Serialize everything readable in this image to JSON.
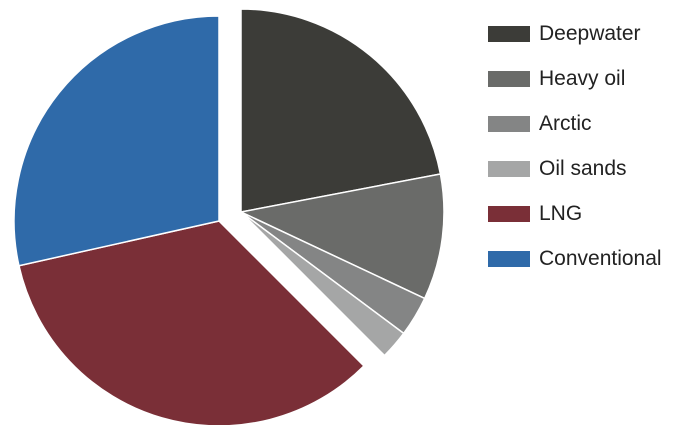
{
  "chart_data": {
    "type": "pie",
    "title": "",
    "slices": [
      {
        "label": "Deepwater",
        "value": 22.0,
        "color": "#3c3c38",
        "exploded": true
      },
      {
        "label": "Heavy oil",
        "value": 10.0,
        "color": "#6a6b69",
        "exploded": true
      },
      {
        "label": "Arctic",
        "value": 3.2,
        "color": "#848585",
        "exploded": true
      },
      {
        "label": "Oil sands",
        "value": 2.3,
        "color": "#a5a6a6",
        "exploded": true
      },
      {
        "label": "LNG",
        "value": 34.0,
        "color": "#7a2f37",
        "exploded": false
      },
      {
        "label": "Conventional",
        "value": 28.5,
        "color": "#2f6aa9",
        "exploded": false
      }
    ],
    "start_angle_deg": 0,
    "direction": "clockwise",
    "legend_position": "right"
  }
}
